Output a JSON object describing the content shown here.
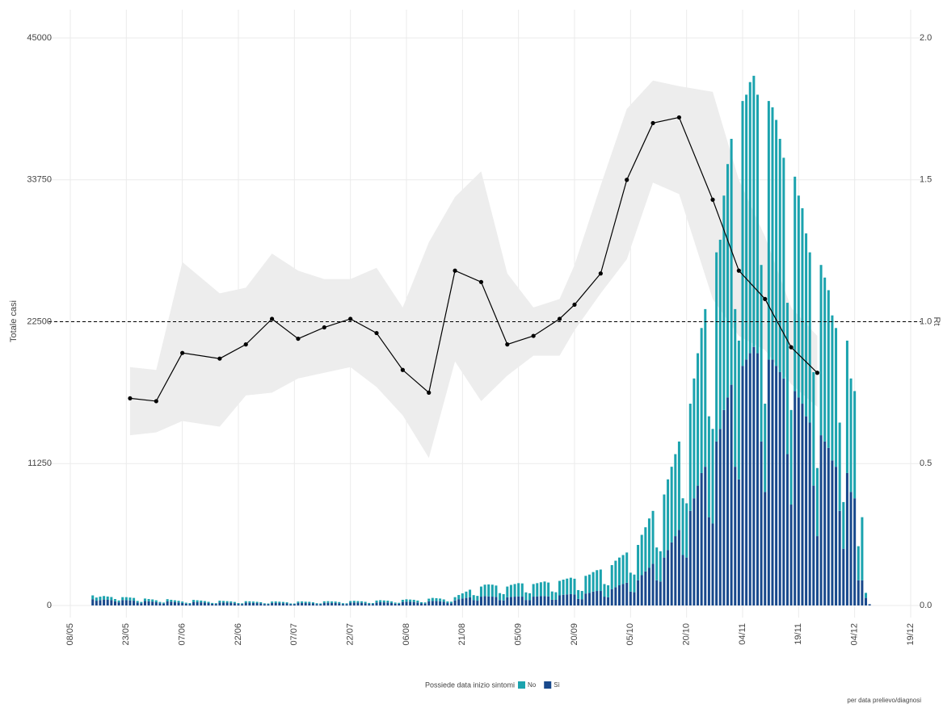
{
  "chart_data": {
    "type": "bar",
    "y_label": "Totale casi",
    "y2_label": "Rt",
    "legend_title": "Possiede data inizio sintomi",
    "caption": "per data prelievo/diagnosi",
    "ylim": [
      0,
      45000
    ],
    "yticks": [
      0,
      11250,
      22500,
      33750,
      45000
    ],
    "y2lim": [
      0,
      2
    ],
    "y2ticks": [
      {
        "value": 0,
        "label": "0.0"
      },
      {
        "value": 0.5,
        "label": "0.5"
      },
      {
        "value": 1,
        "label": "1.0"
      },
      {
        "value": 1.5,
        "label": "1.5"
      },
      {
        "value": 2,
        "label": "2.0"
      }
    ],
    "grid": true,
    "threshold": 1,
    "xticks": [
      "08/05",
      "23/05",
      "07/06",
      "22/06",
      "07/07",
      "22/07",
      "06/08",
      "21/08",
      "05/09",
      "20/09",
      "05/10",
      "20/10",
      "04/11",
      "19/11",
      "04/12",
      "19/12"
    ],
    "categories": [
      "08/05",
      "09/05",
      "10/05",
      "11/05",
      "12/05",
      "13/05",
      "14/05",
      "15/05",
      "16/05",
      "17/05",
      "18/05",
      "19/05",
      "20/05",
      "21/05",
      "22/05",
      "23/05",
      "24/05",
      "25/05",
      "26/05",
      "27/05",
      "28/05",
      "29/05",
      "30/05",
      "31/05",
      "01/06",
      "02/06",
      "03/06",
      "04/06",
      "05/06",
      "06/06",
      "07/06",
      "08/06",
      "09/06",
      "10/06",
      "11/06",
      "12/06",
      "13/06",
      "14/06",
      "15/06",
      "16/06",
      "17/06",
      "18/06",
      "19/06",
      "20/06",
      "21/06",
      "22/06",
      "23/06",
      "24/06",
      "25/06",
      "26/06",
      "27/06",
      "28/06",
      "29/06",
      "30/06",
      "01/07",
      "02/07",
      "03/07",
      "04/07",
      "05/07",
      "06/07",
      "07/07",
      "08/07",
      "09/07",
      "10/07",
      "11/07",
      "12/07",
      "13/07",
      "14/07",
      "15/07",
      "16/07",
      "17/07",
      "18/07",
      "19/07",
      "20/07",
      "21/07",
      "22/07",
      "23/07",
      "24/07",
      "25/07",
      "26/07",
      "27/07",
      "28/07",
      "29/07",
      "30/07",
      "31/07",
      "01/08",
      "02/08",
      "03/08",
      "04/08",
      "05/08",
      "06/08",
      "07/08",
      "08/08",
      "09/08",
      "10/08",
      "11/08",
      "12/08",
      "13/08",
      "14/08",
      "15/08",
      "16/08",
      "17/08",
      "18/08",
      "19/08",
      "20/08",
      "21/08",
      "22/08",
      "23/08",
      "24/08",
      "25/08",
      "26/08",
      "27/08",
      "28/08",
      "29/08",
      "30/08",
      "31/08",
      "01/09",
      "02/09",
      "03/09",
      "04/09",
      "05/09",
      "06/09",
      "07/09",
      "08/09",
      "09/09",
      "10/09",
      "11/09",
      "12/09",
      "13/09",
      "14/09",
      "15/09",
      "16/09",
      "17/09",
      "18/09",
      "19/09",
      "20/09",
      "21/09",
      "22/09",
      "23/09",
      "24/09",
      "25/09",
      "26/09",
      "27/09",
      "28/09",
      "29/09",
      "30/09",
      "01/10",
      "02/10",
      "03/10",
      "04/10",
      "05/10",
      "06/10",
      "07/10",
      "08/10",
      "09/10",
      "10/10",
      "11/10",
      "12/10",
      "13/10",
      "14/10",
      "15/10",
      "16/10",
      "17/10",
      "18/10",
      "19/10",
      "20/10",
      "21/10",
      "22/10",
      "23/10",
      "24/10",
      "25/10",
      "26/10",
      "27/10",
      "28/10",
      "29/10",
      "30/10",
      "31/10",
      "01/11",
      "02/11",
      "03/11",
      "04/11",
      "05/11",
      "06/11",
      "07/11",
      "08/11",
      "09/11",
      "10/11",
      "11/11",
      "12/11",
      "13/11",
      "14/11",
      "15/11",
      "16/11",
      "17/11",
      "18/11",
      "19/11",
      "20/11",
      "21/11",
      "22/11",
      "23/11",
      "24/11",
      "25/11",
      "26/11",
      "27/11",
      "28/11",
      "29/11",
      "30/11",
      "01/12",
      "02/12",
      "03/12",
      "04/12",
      "05/12",
      "06/12",
      "07/12",
      "08/12",
      "09/12",
      "10/12",
      "11/12",
      "12/12",
      "13/12",
      "14/12",
      "15/12",
      "16/12",
      "17/12",
      "18/12",
      "19/12"
    ],
    "series": [
      {
        "name": "No",
        "color": "#1ba3ae",
        "values": [
          null,
          null,
          null,
          null,
          null,
          null,
          300,
          250,
          270,
          280,
          260,
          250,
          180,
          150,
          230,
          240,
          230,
          220,
          130,
          100,
          200,
          180,
          170,
          150,
          100,
          80,
          180,
          150,
          140,
          130,
          110,
          80,
          70,
          160,
          150,
          140,
          120,
          100,
          70,
          60,
          140,
          130,
          120,
          110,
          100,
          70,
          60,
          120,
          120,
          110,
          100,
          90,
          60,
          55,
          110,
          120,
          110,
          100,
          90,
          60,
          55,
          110,
          120,
          110,
          110,
          90,
          70,
          60,
          120,
          130,
          120,
          110,
          100,
          70,
          60,
          130,
          140,
          130,
          120,
          110,
          80,
          70,
          150,
          160,
          150,
          140,
          120,
          90,
          80,
          170,
          190,
          180,
          170,
          150,
          100,
          90,
          210,
          240,
          230,
          220,
          190,
          130,
          120,
          260,
          330,
          400,
          500,
          600,
          400,
          380,
          800,
          900,
          950,
          950,
          900,
          550,
          500,
          850,
          950,
          1000,
          1050,
          1050,
          600,
          550,
          1000,
          1050,
          1100,
          1150,
          1100,
          650,
          600,
          1150,
          1200,
          1250,
          1300,
          1250,
          700,
          650,
          1400,
          1450,
          1550,
          1650,
          1700,
          1000,
          950,
          1900,
          2100,
          2200,
          2300,
          2400,
          1500,
          1400,
          2800,
          3200,
          3500,
          3900,
          4200,
          2600,
          2400,
          5000,
          5600,
          6000,
          6500,
          7000,
          4500,
          4300,
          8500,
          9500,
          10500,
          11500,
          12500,
          8000,
          7500,
          15000,
          15000,
          17000,
          18500,
          19500,
          12500,
          11000,
          21000,
          21000,
          21500,
          21500,
          20500,
          14000,
          7000,
          20500,
          20000,
          19500,
          18500,
          17500,
          12000,
          7500,
          17000,
          16000,
          15500,
          14500,
          13500,
          9000,
          5400,
          13500,
          13000,
          12500,
          11500,
          11000,
          7000,
          3700,
          10500,
          9000,
          8500,
          2700,
          5000,
          400,
          0,
          null,
          null,
          null,
          null,
          null,
          null,
          null,
          null,
          null,
          null,
          null
        ]
      },
      {
        "name": "Sì",
        "color": "#18498c",
        "values": [
          null,
          null,
          null,
          null,
          null,
          null,
          500,
          380,
          430,
          470,
          450,
          420,
          330,
          250,
          430,
          420,
          400,
          380,
          230,
          180,
          350,
          330,
          310,
          260,
          180,
          150,
          320,
          300,
          270,
          240,
          200,
          140,
          120,
          280,
          260,
          250,
          230,
          190,
          130,
          120,
          240,
          230,
          220,
          210,
          180,
          120,
          110,
          220,
          210,
          200,
          190,
          170,
          110,
          100,
          200,
          200,
          190,
          180,
          160,
          100,
          100,
          200,
          200,
          190,
          180,
          160,
          110,
          100,
          210,
          210,
          200,
          200,
          170,
          110,
          110,
          220,
          230,
          220,
          210,
          180,
          120,
          120,
          240,
          260,
          250,
          240,
          200,
          140,
          130,
          280,
          300,
          290,
          280,
          240,
          160,
          150,
          330,
          360,
          350,
          330,
          290,
          190,
          180,
          400,
          500,
          560,
          600,
          650,
          420,
          380,
          700,
          750,
          720,
          700,
          680,
          430,
          400,
          650,
          680,
          700,
          720,
          700,
          440,
          420,
          700,
          720,
          740,
          750,
          720,
          460,
          450,
          800,
          850,
          880,
          900,
          870,
          520,
          500,
          950,
          1000,
          1100,
          1150,
          1150,
          700,
          650,
          1300,
          1450,
          1600,
          1700,
          1800,
          1100,
          1050,
          2000,
          2400,
          2700,
          3000,
          3300,
          2000,
          1900,
          3800,
          4400,
          5000,
          5500,
          6000,
          4000,
          3800,
          7500,
          8500,
          9500,
          10500,
          11000,
          7000,
          6500,
          13000,
          14000,
          15500,
          16500,
          17500,
          11000,
          10000,
          19000,
          19500,
          20000,
          20500,
          20000,
          13000,
          9000,
          19500,
          19500,
          19000,
          18500,
          18000,
          12000,
          8000,
          17000,
          16500,
          16000,
          15000,
          14500,
          9500,
          5500,
          13500,
          13000,
          12500,
          11500,
          11000,
          7500,
          4500,
          10500,
          9000,
          8500,
          2000,
          2000,
          600,
          100,
          null,
          null,
          null,
          null,
          null,
          null,
          null,
          null,
          null,
          null,
          null
        ]
      }
    ],
    "line": {
      "color": "#000000",
      "band_color": "#ededed",
      "x": [
        "24/05",
        "31/05",
        "07/06",
        "17/06",
        "24/06",
        "01/07",
        "08/07",
        "15/07",
        "22/07",
        "29/07",
        "05/08",
        "12/08",
        "19/08",
        "26/08",
        "02/09",
        "09/09",
        "16/09",
        "20/09",
        "27/09",
        "04/10",
        "11/10",
        "18/10",
        "27/10",
        "03/11",
        "10/11",
        "17/11",
        "24/11"
      ],
      "values": [
        0.73,
        0.72,
        0.89,
        0.87,
        0.92,
        1.01,
        0.94,
        0.98,
        1.01,
        0.96,
        0.83,
        0.75,
        1.18,
        1.14,
        0.92,
        0.95,
        1.01,
        1.06,
        1.17,
        1.5,
        1.7,
        1.72,
        1.43,
        1.18,
        1.08,
        0.91,
        0.82
      ],
      "lower": [
        0.6,
        0.61,
        0.65,
        0.63,
        0.74,
        0.75,
        0.8,
        0.82,
        0.84,
        0.77,
        0.67,
        0.52,
        0.86,
        0.72,
        0.81,
        0.88,
        0.88,
        0.97,
        1.1,
        1.22,
        1.49,
        1.45,
        1.08,
        0.95,
        0.9,
        0.78,
        0.7
      ],
      "upper": [
        0.84,
        0.83,
        1.21,
        1.1,
        1.12,
        1.24,
        1.18,
        1.15,
        1.15,
        1.19,
        1.05,
        1.28,
        1.44,
        1.53,
        1.17,
        1.05,
        1.08,
        1.2,
        1.48,
        1.75,
        1.85,
        1.83,
        1.81,
        1.5,
        1.3,
        1.05,
        0.95
      ]
    }
  }
}
